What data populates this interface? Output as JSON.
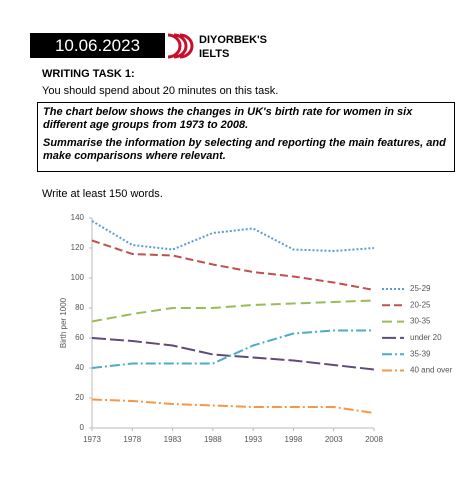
{
  "header": {
    "date": "10.06.2023",
    "brand": [
      "DIYORBEK'S",
      "IELTS"
    ]
  },
  "task": {
    "heading": "WRITING TASK 1:",
    "time": "You should spend about 20 minutes on this task.",
    "prompt": [
      "The chart below shows the changes in UK's birth rate for women in six different age groups from 1973 to 2008.",
      "Summarise the information by selecting and reporting the main features, and make comparisons where relevant."
    ],
    "words": "Write at least 150 words."
  },
  "chart_data": {
    "type": "line",
    "y_label": "Birth per 1000",
    "x": [
      1973,
      1978,
      1983,
      1988,
      1993,
      1998,
      2003,
      2008
    ],
    "xlim": [
      1973,
      2008
    ],
    "xticks": [
      1973,
      1978,
      1983,
      1988,
      1993,
      1998,
      2003,
      2008
    ],
    "ylim": [
      0,
      140
    ],
    "yticks": [
      0,
      20,
      40,
      60,
      80,
      100,
      120,
      140
    ],
    "series": [
      {
        "name": "25-29",
        "color": "#5b9bd5",
        "dash": "2 2",
        "values": [
          138,
          122,
          119,
          130,
          133,
          119,
          118,
          120
        ]
      },
      {
        "name": "20-25",
        "color": "#c0504d",
        "dash": "8 4",
        "values": [
          125,
          116,
          115,
          109,
          104,
          101,
          97,
          92
        ]
      },
      {
        "name": "30-35",
        "color": "#9bbb59",
        "dash": "10 5",
        "values": [
          71,
          76,
          80,
          80,
          82,
          83,
          84,
          85
        ]
      },
      {
        "name": "under 20",
        "color": "#604a7b",
        "dash": "14 4",
        "values": [
          60,
          58,
          55,
          49,
          47,
          45,
          42,
          39
        ]
      },
      {
        "name": "35-39",
        "color": "#4bacc6",
        "dash": "10 3 2 3",
        "values": [
          40,
          43,
          43,
          43,
          55,
          63,
          65,
          65
        ]
      },
      {
        "name": "40 and over",
        "color": "#f79646",
        "dash": "10 3 2 3",
        "values": [
          19,
          18,
          16,
          15,
          14,
          14,
          14,
          10
        ]
      }
    ]
  }
}
